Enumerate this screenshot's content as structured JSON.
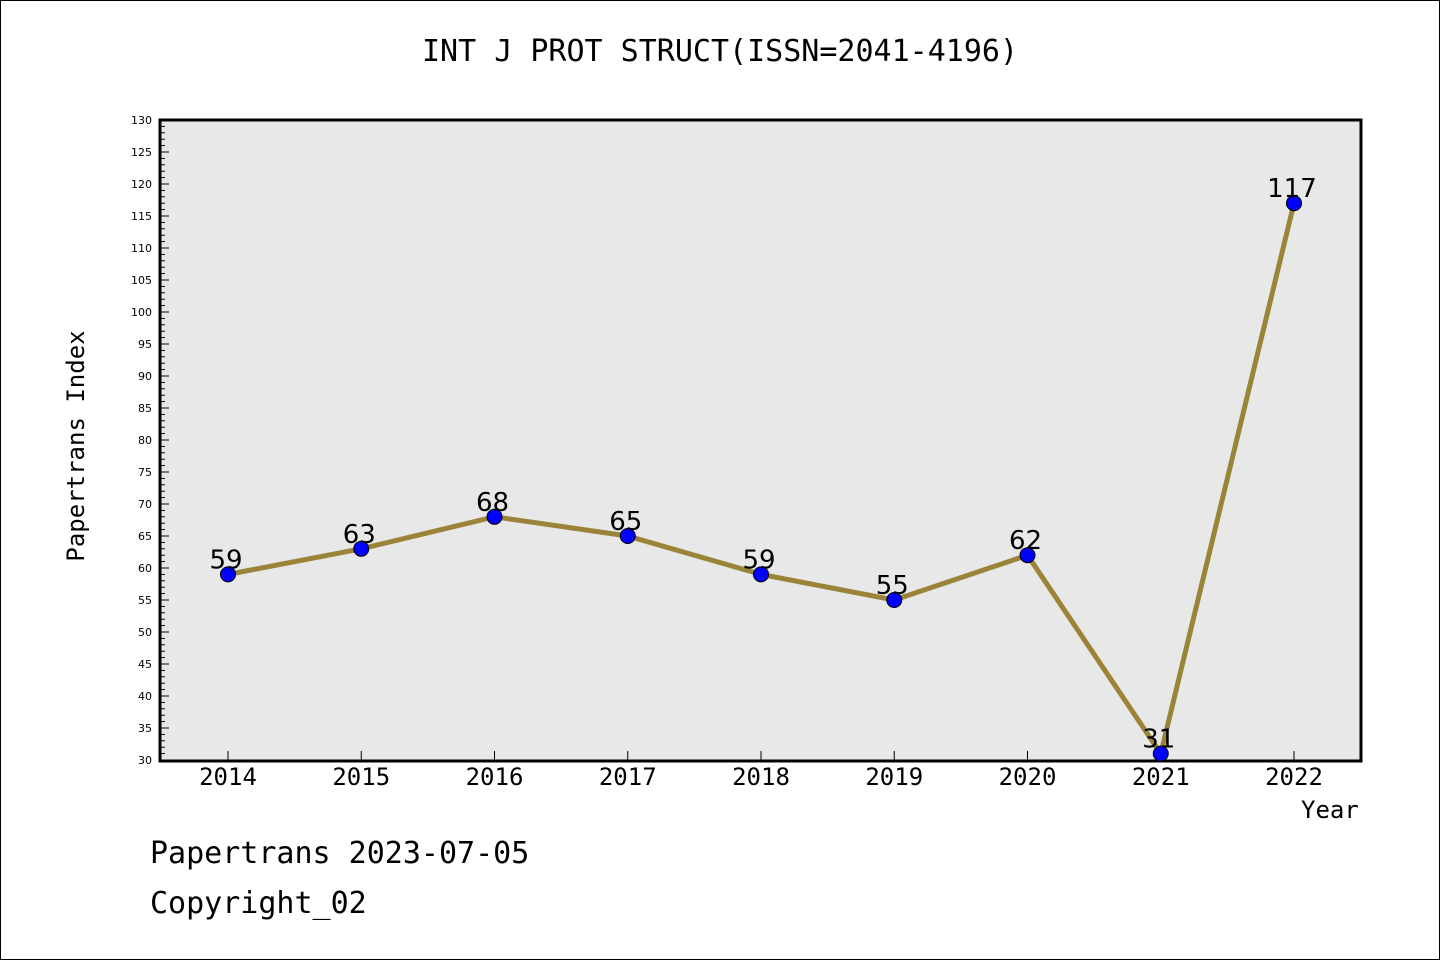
{
  "chart_data": {
    "type": "line",
    "title": "INT J PROT STRUCT(ISSN=2041-4196)",
    "xlabel": "Year",
    "ylabel": "Papertrans Index",
    "categories": [
      "2014",
      "2015",
      "2016",
      "2017",
      "2018",
      "2019",
      "2020",
      "2021",
      "2022"
    ],
    "series": [
      {
        "values": [
          59,
          63,
          68,
          65,
          59,
          55,
          62,
          31,
          117
        ]
      }
    ],
    "data_labels": [
      "59",
      "63",
      "68",
      "65",
      "59",
      "55",
      "62",
      "31",
      "117"
    ],
    "ylim": [
      30,
      130
    ],
    "y_ticks": [
      "30",
      "35",
      "40",
      "45",
      "50",
      "55",
      "60",
      "65",
      "70",
      "75",
      "80",
      "85",
      "90",
      "95",
      "100",
      "105",
      "110",
      "115",
      "120",
      "125",
      "130"
    ],
    "grid": false,
    "colors": {
      "line": "#9a8439",
      "marker": "#0000ff",
      "plot_bg": "#e8e8e8"
    }
  },
  "footer": {
    "date_text": "Papertrans 2023-07-05",
    "copyright_text": "Copyright_02"
  }
}
